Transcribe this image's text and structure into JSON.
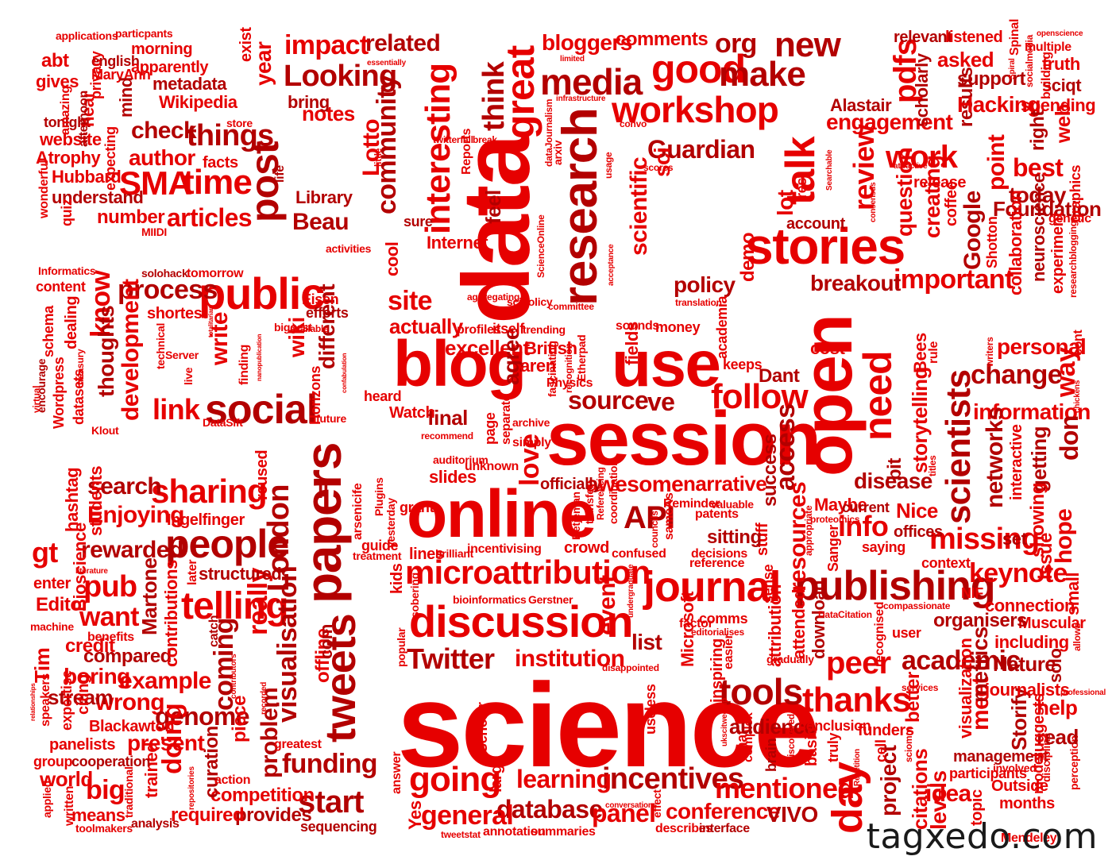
{
  "colors": {
    "primary": "#e60000",
    "dark": "#b30000",
    "light": "#ee1a1a",
    "watermark": "#1a1a1a",
    "background": "#ffffff"
  },
  "watermark": "tagxedo.com",
  "words": [
    "science",
    "data",
    "session",
    "online",
    "open",
    "use",
    "blog",
    "stories",
    "research",
    "public",
    "papers",
    "publishing",
    "discussion",
    "microattribution",
    "journal",
    "tweets",
    "social",
    "people",
    "talk",
    "good",
    "workshop",
    "media",
    "great",
    "new",
    "make",
    "interesting",
    "post",
    "time",
    "SMA",
    "things",
    "articles",
    "scientists",
    "need",
    "follow",
    "thanks",
    "tools",
    "going",
    "incentives",
    "learning",
    "database",
    "general",
    "panel",
    "conference",
    "VIVO",
    "mentioned",
    "day",
    "Twitter",
    "institution",
    "sharing",
    "telling",
    "visualisation",
    "London",
    "link",
    "process",
    "development",
    "know",
    "thoughts",
    "write",
    "different",
    "wiki",
    "missing",
    "keynote",
    "academic",
    "change",
    "information",
    "personal",
    "way",
    "don",
    "importance",
    "important",
    "breakout",
    "review",
    "work",
    "question",
    "creating",
    "Google",
    "point",
    "Foundation",
    "best",
    "today",
    "engagement",
    "results",
    "asked",
    "support",
    "Hacking",
    "pdfs",
    "scholarly",
    "relevant",
    "listened",
    "truth",
    "sciqt",
    "spending",
    "right",
    "web",
    "Alastair",
    "community",
    "Lotto",
    "think",
    "related",
    "impact",
    "Looking",
    "bloggers",
    "comments",
    "org",
    "Guardian",
    "scientific",
    "sci",
    "notes",
    "bring",
    "year",
    "exist",
    "check",
    "author",
    "facts",
    "Beau",
    "Library",
    "number",
    "understand",
    "Hubbard",
    "Atrophy",
    "website",
    "tonight",
    "gives",
    "abt",
    "english",
    "MaryAnn",
    "apparently",
    "metadata",
    "Wikipedia",
    "morning",
    "applications",
    "particpants",
    "mind",
    "hear",
    "privacy",
    "expecting",
    "amazing",
    "afternoon",
    "wonderful",
    "quiz",
    "MIIDI",
    "life",
    "store",
    "source",
    "ve",
    "access",
    "resources",
    "excellent",
    "agree",
    "British",
    "aren",
    "actually",
    "site",
    "cool",
    "Internet",
    "feel",
    "sure",
    "policy",
    "demo",
    "lot",
    "account",
    "rest",
    "release",
    "coffee",
    "Shotton",
    "collaboration",
    "neuroscience",
    "experiment",
    "graphics",
    "genetic",
    "API",
    "info",
    "narrative",
    "success",
    "awesome",
    "officially",
    "slides",
    "love",
    "final",
    "Watch",
    "heard",
    "Nice",
    "offices",
    "Maybe",
    "current",
    "saying",
    "network",
    "networks",
    "storytelling",
    "Bees",
    "disease",
    "bit",
    "cost",
    "Dant",
    "keeps",
    "academia",
    "fields",
    "interactive",
    "getting",
    "showing",
    "hope",
    "issue",
    "small",
    "set",
    "search",
    "Enjoying",
    "rewarded",
    "pub",
    "want",
    "credit",
    "boring",
    "compared",
    "example",
    "wrong",
    "genome",
    "coming",
    "really",
    "problem",
    "funding",
    "start",
    "competition",
    "provides",
    "required",
    "means",
    "big",
    "world",
    "group",
    "doing",
    "curation",
    "present",
    "trained",
    "cooperation",
    "Blackawton",
    "panelists",
    "stream",
    "Tim",
    "Editor",
    "enter",
    "gt",
    "hashtag",
    "students",
    "Bioscience",
    "written",
    "applied",
    "analysis",
    "toolmakers",
    "expertise",
    "speakers",
    "citing",
    "Martone",
    "contributions",
    "structured",
    "later",
    "catch",
    "piece",
    "offline",
    "com",
    "greatest",
    "sequencing",
    "reused",
    "Ingelfinger",
    "benefits",
    "machine",
    "Yes",
    "answer",
    "large",
    "Scholar",
    "annotation",
    "summaries",
    "describes",
    "interface",
    "effect",
    "useless",
    "chat",
    "complex",
    "brain",
    "audience",
    "basic",
    "truly",
    "conclusion",
    "funders",
    "project",
    "cell",
    "better",
    "citations",
    "idea",
    "levels",
    "topic",
    "Storify",
    "meet",
    "metrics",
    "visualization",
    "participants",
    "involved",
    "management",
    "Outside",
    "months",
    "model",
    "discipline",
    "perception",
    "read",
    "suggests",
    "help",
    "journalists",
    "professional",
    "solo",
    "allows",
    "Nature",
    "including",
    "Muscular",
    "organisers",
    "connection",
    "NIF",
    "context",
    "user",
    "compassionate",
    "recognised",
    "peer",
    "download",
    "attended",
    "attribution",
    "sense",
    "stuff",
    "gradually",
    "inspiring",
    "easier",
    "Microsoft",
    "comms",
    "factor",
    "editorialises",
    "list",
    "event",
    "reference",
    "sitting",
    "decisions",
    "patents",
    "valuable",
    "Reminder",
    "sameAs",
    "councils",
    "confused",
    "crowd",
    "coordination",
    "Referencing",
    "transfer",
    "Betjeman",
    "bioinformatics",
    "Gerstner",
    "brilliant",
    "incentivising",
    "lines",
    "kids",
    "popular",
    "sobering",
    "guide",
    "treatment",
    "grant",
    "yesterday",
    "Plugins",
    "arsenicife",
    "auditorium",
    "unknown",
    "page",
    "separate",
    "simply",
    "archive",
    "recommend",
    "fascinating",
    "Physics",
    "recognition",
    "Etherpad",
    "trending",
    "itself",
    "profiles",
    "scipolicy",
    "committee",
    "aggregating",
    "translation",
    "sounds",
    "money",
    "rule",
    "writers",
    "cont",
    "chickens",
    "Sanger",
    "proteomics",
    "appropriate",
    "DataCitation",
    "titles",
    "services",
    "sciomm",
    "Repetition",
    "discovered",
    "ukscitweetup",
    "tweetstat",
    "conversations",
    "contributors",
    "recorded",
    "relationships",
    "repositories",
    "traditional",
    "literature",
    "action",
    "Informatics",
    "solohack",
    "tomorrow",
    "content",
    "schema",
    "dealing",
    "Wordpress",
    "datasets",
    "virtual",
    "encourage",
    "Klout",
    "treasury",
    "shortest",
    "technical",
    "Server",
    "live",
    "DataSift",
    "finding",
    "biggest",
    "available",
    "Horizons",
    "future",
    "efforts",
    "Eisen",
    "activities",
    "ScienceOnline",
    "dataJournalism",
    "arxiv",
    "twitterfall",
    "break",
    "Reports",
    "little",
    "usage",
    "scores",
    "convo",
    "infrastructure",
    "limited",
    "essentially",
    "acceptance",
    "Spinal",
    "socialmedia",
    "building",
    "multiple",
    "openscience",
    "Searchable",
    "consensus",
    "attractive",
    "researchblogging",
    "ll",
    "disappointed",
    "undergraduate",
    "Mendeley",
    "insights",
    "nanopublication",
    "confabulation",
    "totalitarian",
    "Spiral"
  ]
}
